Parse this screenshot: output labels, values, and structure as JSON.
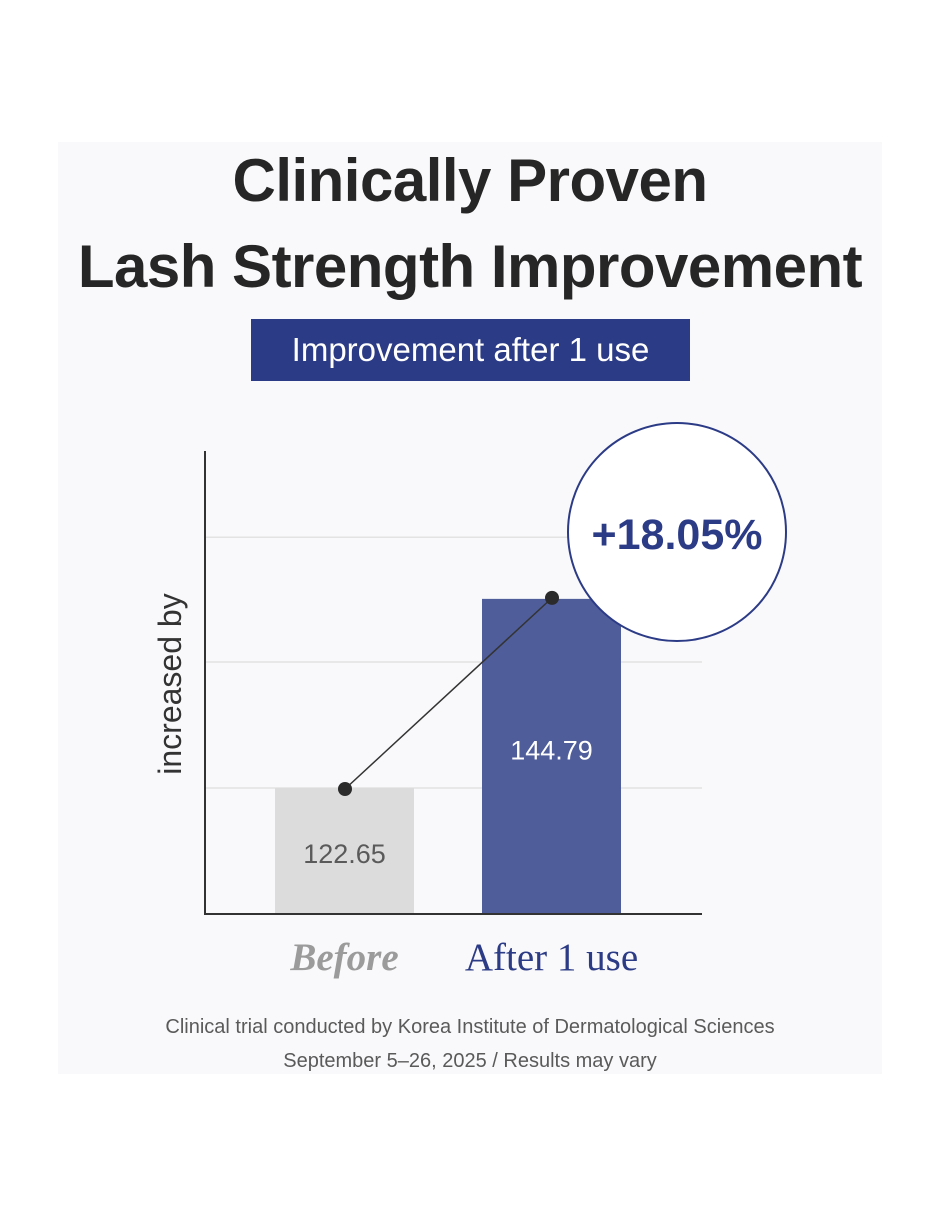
{
  "title": {
    "line1": "Clinically Proven",
    "line2": "Lash Strength Improvement"
  },
  "subtitle": "Improvement after 1 use",
  "chart_data": {
    "type": "bar",
    "categories": [
      "Before",
      "After 1 use"
    ],
    "values": [
      122.65,
      144.79
    ],
    "value_labels": [
      "122.65",
      "144.79"
    ],
    "ylabel": "increased by",
    "title": "",
    "xlabel": "",
    "ylim": [
      107.9,
      162.1
    ],
    "gridlines": [
      122.65,
      137.4,
      152.0
    ],
    "grid": true,
    "annotation": "+18.05%",
    "bar_colors": [
      "#dcdcdc",
      "#4f5d9b"
    ],
    "category_label_colors": [
      "#9b9b9b",
      "#2c3b86"
    ],
    "value_label_colors": [
      "#5a5a5a",
      "#ffffff"
    ],
    "accent_color": "#2c3b86"
  },
  "footnote": {
    "line1": "Clinical trial conducted by Korea Institute of Dermatological Sciences",
    "line2": "September 5–26, 2025 / Results may vary"
  }
}
